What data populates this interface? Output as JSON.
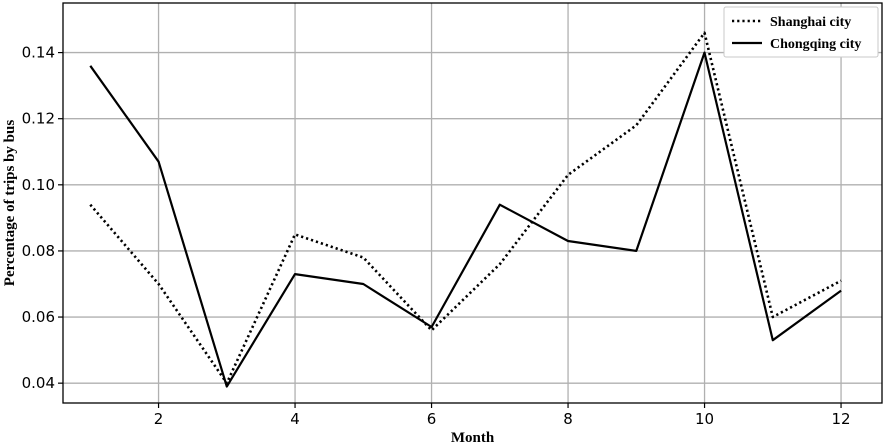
{
  "chart_data": {
    "type": "line",
    "xlabel": "Month",
    "ylabel": "Percentage of trips by bus",
    "xlim": [
      0.6,
      12.6
    ],
    "ylim": [
      0.034,
      0.155
    ],
    "xticks": [
      2,
      4,
      6,
      8,
      10,
      12
    ],
    "xtick_labels": [
      "2",
      "4",
      "6",
      "8",
      "10",
      "12"
    ],
    "yticks": [
      0.04,
      0.06,
      0.08,
      0.1,
      0.12,
      0.14
    ],
    "ytick_labels": [
      "0.04",
      "0.06",
      "0.08",
      "0.10",
      "0.12",
      "0.14"
    ],
    "grid": true,
    "legend_position": "top-right",
    "x": [
      1,
      2,
      3,
      4,
      5,
      6,
      7,
      8,
      9,
      10,
      11,
      12
    ],
    "series": [
      {
        "name": "Shanghai city",
        "style": "dotted",
        "color": "#000000",
        "values": [
          0.094,
          0.07,
          0.04,
          0.085,
          0.078,
          0.056,
          0.076,
          0.103,
          0.118,
          0.146,
          0.06,
          0.071
        ]
      },
      {
        "name": "Chongqing city",
        "style": "solid",
        "color": "#000000",
        "values": [
          0.136,
          0.107,
          0.039,
          0.073,
          0.07,
          0.057,
          0.094,
          0.083,
          0.08,
          0.14,
          0.053,
          0.068
        ]
      }
    ]
  }
}
